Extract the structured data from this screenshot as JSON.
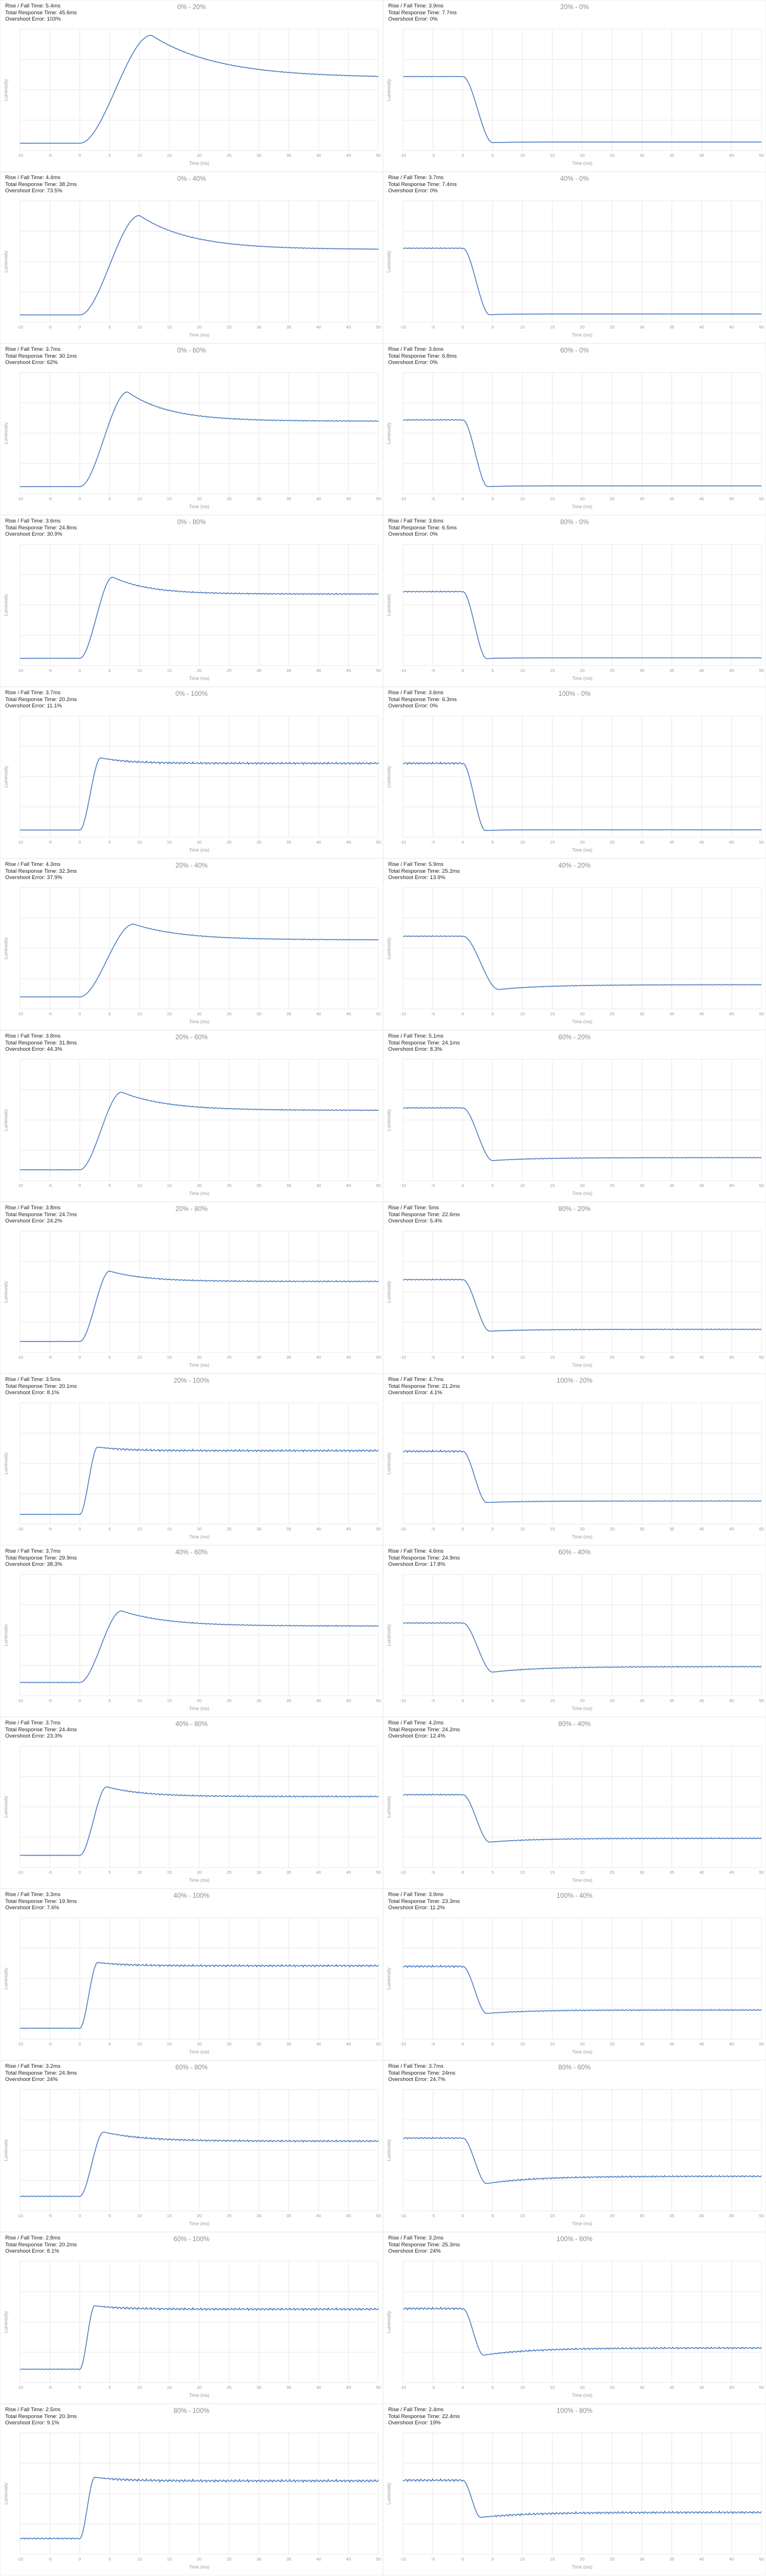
{
  "labels": {
    "rise_fall": "Rise / Fall Time:",
    "total_response": "Total Response Time:",
    "overshoot": "Overshoot Error:",
    "ylabel": "Luminosity",
    "xlabel": "Time (ms)"
  },
  "axis": {
    "xlim": [
      -10,
      50
    ],
    "x_ticks": [
      -10,
      -5,
      0,
      5,
      10,
      15,
      20,
      25,
      30,
      35,
      40,
      45,
      50
    ],
    "grid": true,
    "y_tick_labels": false
  },
  "style": {
    "line_color": "#4a7cc2",
    "grid_color": "#e9e9e9",
    "title_color": "#8c8c8c",
    "stats_color": "#1f1f1f",
    "tick_color": "#9a9a9a",
    "background": "#ffffff"
  },
  "chart_data": [
    {
      "type": "line",
      "title": "0% - 20%",
      "rise_fall_time": "5.4ms",
      "total_response_time": "45.6ms",
      "overshoot_error": "103%",
      "direction": "rise",
      "curve": {
        "start": 0.06,
        "peak": 0.95,
        "settle": 0.6,
        "t_peak": 12,
        "tau": 11,
        "noise_start": 0.002,
        "noise_end": 0.004
      }
    },
    {
      "type": "line",
      "title": "20% - 0%",
      "rise_fall_time": "3.9ms",
      "total_response_time": "7.7ms",
      "overshoot_error": "0%",
      "direction": "fall",
      "curve": {
        "start": 0.61,
        "peak": 0.065,
        "settle": 0.07,
        "t_peak": 5,
        "tau": 3,
        "noise_start": 0.003,
        "noise_end": 0.002
      }
    },
    {
      "type": "line",
      "title": "0% - 40%",
      "rise_fall_time": "4.4ms",
      "total_response_time": "38.2ms",
      "overshoot_error": "73.5%",
      "direction": "rise",
      "curve": {
        "start": 0.06,
        "peak": 0.88,
        "settle": 0.6,
        "t_peak": 10,
        "tau": 8.5,
        "noise_start": 0.002,
        "noise_end": 0.004
      }
    },
    {
      "type": "line",
      "title": "40% - 0%",
      "rise_fall_time": "3.7ms",
      "total_response_time": "7.4ms",
      "overshoot_error": "0%",
      "direction": "fall",
      "curve": {
        "start": 0.61,
        "peak": 0.062,
        "settle": 0.068,
        "t_peak": 4.5,
        "tau": 3,
        "noise_start": 0.004,
        "noise_end": 0.002
      }
    },
    {
      "type": "line",
      "title": "0% - 60%",
      "rise_fall_time": "3.7ms",
      "total_response_time": "30.1ms",
      "overshoot_error": "62%",
      "direction": "rise",
      "curve": {
        "start": 0.06,
        "peak": 0.84,
        "settle": 0.6,
        "t_peak": 8,
        "tau": 7,
        "noise_start": 0.002,
        "noise_end": 0.005
      }
    },
    {
      "type": "line",
      "title": "60% - 0%",
      "rise_fall_time": "3.6ms",
      "total_response_time": "6.8ms",
      "overshoot_error": "0%",
      "direction": "fall",
      "curve": {
        "start": 0.61,
        "peak": 0.06,
        "settle": 0.066,
        "t_peak": 4.2,
        "tau": 3,
        "noise_start": 0.005,
        "noise_end": 0.002
      }
    },
    {
      "type": "line",
      "title": "0% - 80%",
      "rise_fall_time": "3.6ms",
      "total_response_time": "24.8ms",
      "overshoot_error": "30.9%",
      "direction": "rise",
      "curve": {
        "start": 0.06,
        "peak": 0.73,
        "settle": 0.59,
        "t_peak": 5.5,
        "tau": 6,
        "noise_start": 0.002,
        "noise_end": 0.006
      }
    },
    {
      "type": "line",
      "title": "80% - 0%",
      "rise_fall_time": "3.6ms",
      "total_response_time": "6.5ms",
      "overshoot_error": "0%",
      "direction": "fall",
      "curve": {
        "start": 0.61,
        "peak": 0.058,
        "settle": 0.064,
        "t_peak": 4,
        "tau": 3,
        "noise_start": 0.006,
        "noise_end": 0.002
      }
    },
    {
      "type": "line",
      "title": "0% - 100%",
      "rise_fall_time": "3.7ms",
      "total_response_time": "20.2ms",
      "overshoot_error": "11.1%",
      "direction": "rise",
      "curve": {
        "start": 0.06,
        "peak": 0.655,
        "settle": 0.61,
        "t_peak": 3.5,
        "tau": 4.5,
        "noise_start": 0.002,
        "noise_end": 0.011
      }
    },
    {
      "type": "line",
      "title": "100% - 0%",
      "rise_fall_time": "3.6ms",
      "total_response_time": "6.3ms",
      "overshoot_error": "0%",
      "direction": "fall",
      "curve": {
        "start": 0.61,
        "peak": 0.056,
        "settle": 0.062,
        "t_peak": 3.8,
        "tau": 3,
        "noise_start": 0.011,
        "noise_end": 0.002
      }
    },
    {
      "type": "line",
      "title": "20% - 40%",
      "rise_fall_time": "4.3ms",
      "total_response_time": "32.3ms",
      "overshoot_error": "37.9%",
      "direction": "rise",
      "curve": {
        "start": 0.1,
        "peak": 0.7,
        "settle": 0.57,
        "t_peak": 9,
        "tau": 8,
        "noise_start": 0.003,
        "noise_end": 0.004
      }
    },
    {
      "type": "line",
      "title": "40% - 20%",
      "rise_fall_time": "5.9ms",
      "total_response_time": "25.2ms",
      "overshoot_error": "13.9%",
      "direction": "fall",
      "curve": {
        "start": 0.6,
        "peak": 0.161,
        "settle": 0.2,
        "t_peak": 6,
        "tau": 8,
        "noise_start": 0.004,
        "noise_end": 0.004
      }
    },
    {
      "type": "line",
      "title": "20% - 60%",
      "rise_fall_time": "3.8ms",
      "total_response_time": "31.8ms",
      "overshoot_error": "44.3%",
      "direction": "rise",
      "curve": {
        "start": 0.09,
        "peak": 0.73,
        "settle": 0.58,
        "t_peak": 7,
        "tau": 7.5,
        "noise_start": 0.003,
        "noise_end": 0.005
      }
    },
    {
      "type": "line",
      "title": "60% - 20%",
      "rise_fall_time": "5.1ms",
      "total_response_time": "24.1ms",
      "overshoot_error": "8.3%",
      "direction": "fall",
      "curve": {
        "start": 0.6,
        "peak": 0.166,
        "settle": 0.19,
        "t_peak": 5,
        "tau": 7.5,
        "noise_start": 0.005,
        "noise_end": 0.004
      }
    },
    {
      "type": "line",
      "title": "20% - 80%",
      "rise_fall_time": "3.8ms",
      "total_response_time": "24.7ms",
      "overshoot_error": "24.2%",
      "direction": "rise",
      "curve": {
        "start": 0.09,
        "peak": 0.67,
        "settle": 0.585,
        "t_peak": 5,
        "tau": 6,
        "noise_start": 0.003,
        "noise_end": 0.006
      }
    },
    {
      "type": "line",
      "title": "80% - 20%",
      "rise_fall_time": "5ms",
      "total_response_time": "22.6ms",
      "overshoot_error": "5.4%",
      "direction": "fall",
      "curve": {
        "start": 0.6,
        "peak": 0.175,
        "settle": 0.19,
        "t_peak": 4.5,
        "tau": 7,
        "noise_start": 0.006,
        "noise_end": 0.004
      }
    },
    {
      "type": "line",
      "title": "20% - 100%",
      "rise_fall_time": "3.5ms",
      "total_response_time": "20.1ms",
      "overshoot_error": "8.1%",
      "direction": "rise",
      "curve": {
        "start": 0.08,
        "peak": 0.635,
        "settle": 0.605,
        "t_peak": 3,
        "tau": 4.5,
        "noise_start": 0.003,
        "noise_end": 0.011
      }
    },
    {
      "type": "line",
      "title": "100% - 20%",
      "rise_fall_time": "4.7ms",
      "total_response_time": "21.2ms",
      "overshoot_error": "4.1%",
      "direction": "fall",
      "curve": {
        "start": 0.6,
        "peak": 0.178,
        "settle": 0.19,
        "t_peak": 4,
        "tau": 6.5,
        "noise_start": 0.011,
        "noise_end": 0.004
      }
    },
    {
      "type": "line",
      "title": "40% - 60%",
      "rise_fall_time": "3.7ms",
      "total_response_time": "29.9ms",
      "overshoot_error": "38.3%",
      "direction": "rise",
      "curve": {
        "start": 0.11,
        "peak": 0.7,
        "settle": 0.575,
        "t_peak": 7,
        "tau": 7.5,
        "noise_start": 0.004,
        "noise_end": 0.005
      }
    },
    {
      "type": "line",
      "title": "60% - 40%",
      "rise_fall_time": "4.6ms",
      "total_response_time": "24.9ms",
      "overshoot_error": "17.8%",
      "direction": "fall",
      "curve": {
        "start": 0.6,
        "peak": 0.195,
        "settle": 0.24,
        "t_peak": 5,
        "tau": 8,
        "noise_start": 0.005,
        "noise_end": 0.005
      }
    },
    {
      "type": "line",
      "title": "40% - 80%",
      "rise_fall_time": "3.7ms",
      "total_response_time": "24.4ms",
      "overshoot_error": "23.3%",
      "direction": "rise",
      "curve": {
        "start": 0.1,
        "peak": 0.665,
        "settle": 0.585,
        "t_peak": 4.5,
        "tau": 6,
        "noise_start": 0.004,
        "noise_end": 0.007
      }
    },
    {
      "type": "line",
      "title": "80% - 40%",
      "rise_fall_time": "4.2ms",
      "total_response_time": "24.2ms",
      "overshoot_error": "12.4%",
      "direction": "fall",
      "curve": {
        "start": 0.6,
        "peak": 0.209,
        "settle": 0.24,
        "t_peak": 4.5,
        "tau": 7.5,
        "noise_start": 0.006,
        "noise_end": 0.005
      }
    },
    {
      "type": "line",
      "title": "40% - 100%",
      "rise_fall_time": "3.3ms",
      "total_response_time": "19.9ms",
      "overshoot_error": "7.6%",
      "direction": "rise",
      "curve": {
        "start": 0.09,
        "peak": 0.632,
        "settle": 0.605,
        "t_peak": 3,
        "tau": 4.5,
        "noise_start": 0.004,
        "noise_end": 0.011
      }
    },
    {
      "type": "line",
      "title": "100% - 40%",
      "rise_fall_time": "3.9ms",
      "total_response_time": "23.3ms",
      "overshoot_error": "11.2%",
      "direction": "fall",
      "curve": {
        "start": 0.6,
        "peak": 0.212,
        "settle": 0.24,
        "t_peak": 4,
        "tau": 7,
        "noise_start": 0.011,
        "noise_end": 0.005
      }
    },
    {
      "type": "line",
      "title": "60% - 80%",
      "rise_fall_time": "3.2ms",
      "total_response_time": "24.9ms",
      "overshoot_error": "24%",
      "direction": "rise",
      "curve": {
        "start": 0.12,
        "peak": 0.65,
        "settle": 0.575,
        "t_peak": 4,
        "tau": 6.5,
        "noise_start": 0.004,
        "noise_end": 0.009
      }
    },
    {
      "type": "line",
      "title": "80% - 60%",
      "rise_fall_time": "3.7ms",
      "total_response_time": "24ms",
      "overshoot_error": "24.7%",
      "direction": "fall",
      "curve": {
        "start": 0.6,
        "peak": 0.225,
        "settle": 0.285,
        "t_peak": 4,
        "tau": 8,
        "noise_start": 0.007,
        "noise_end": 0.008
      }
    },
    {
      "type": "line",
      "title": "60% - 100%",
      "rise_fall_time": "2.8ms",
      "total_response_time": "20.2ms",
      "overshoot_error": "8.1%",
      "direction": "rise",
      "curve": {
        "start": 0.11,
        "peak": 0.633,
        "settle": 0.605,
        "t_peak": 2.5,
        "tau": 4.5,
        "noise_start": 0.004,
        "noise_end": 0.012
      }
    },
    {
      "type": "line",
      "title": "100% - 60%",
      "rise_fall_time": "3.2ms",
      "total_response_time": "25.3ms",
      "overshoot_error": "24%",
      "direction": "fall",
      "curve": {
        "start": 0.61,
        "peak": 0.226,
        "settle": 0.285,
        "t_peak": 3.5,
        "tau": 8,
        "noise_start": 0.012,
        "noise_end": 0.009
      }
    },
    {
      "type": "line",
      "title": "80% - 100%",
      "rise_fall_time": "2.5ms",
      "total_response_time": "20.3ms",
      "overshoot_error": "9.1%",
      "direction": "rise",
      "curve": {
        "start": 0.13,
        "peak": 0.635,
        "settle": 0.605,
        "t_peak": 2.5,
        "tau": 4.5,
        "noise_start": 0.007,
        "noise_end": 0.013
      }
    },
    {
      "type": "line",
      "title": "100% - 80%",
      "rise_fall_time": "2.4ms",
      "total_response_time": "22.4ms",
      "overshoot_error": "19%",
      "direction": "fall",
      "curve": {
        "start": 0.61,
        "peak": 0.304,
        "settle": 0.345,
        "t_peak": 3,
        "tau": 8,
        "noise_start": 0.012,
        "noise_end": 0.011
      }
    }
  ]
}
